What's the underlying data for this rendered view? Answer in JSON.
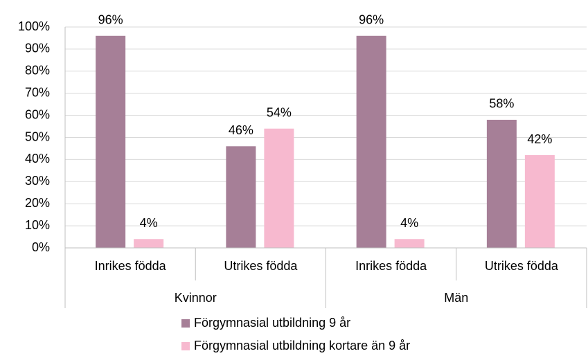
{
  "chart_data": {
    "type": "bar",
    "categories": [
      "Inrikes födda",
      "Utrikes födda",
      "Inrikes födda",
      "Utrikes födda"
    ],
    "groups": [
      "Kvinnor",
      "Män"
    ],
    "series": [
      {
        "name": "Förgymnasial utbildning 9 år",
        "color": "#a67f97",
        "values": [
          96,
          46,
          96,
          58
        ],
        "value_labels": [
          "96%",
          "46%",
          "96%",
          "58%"
        ]
      },
      {
        "name": "Förgymnasial utbildning kortare än 9 år",
        "color": "#f7b9cf",
        "values": [
          4,
          54,
          4,
          42
        ],
        "value_labels": [
          "4%",
          "54%",
          "4%",
          "42%"
        ]
      }
    ],
    "ylim": [
      0,
      100
    ],
    "yticks": [
      {
        "value": 0,
        "label": "0%"
      },
      {
        "value": 10,
        "label": "10%"
      },
      {
        "value": 20,
        "label": "20%"
      },
      {
        "value": 30,
        "label": "30%"
      },
      {
        "value": 40,
        "label": "40%"
      },
      {
        "value": 50,
        "label": "50%"
      },
      {
        "value": 60,
        "label": "60%"
      },
      {
        "value": 70,
        "label": "70%"
      },
      {
        "value": 80,
        "label": "80%"
      },
      {
        "value": 90,
        "label": "90%"
      },
      {
        "value": 100,
        "label": "100%"
      }
    ],
    "grid": true
  }
}
